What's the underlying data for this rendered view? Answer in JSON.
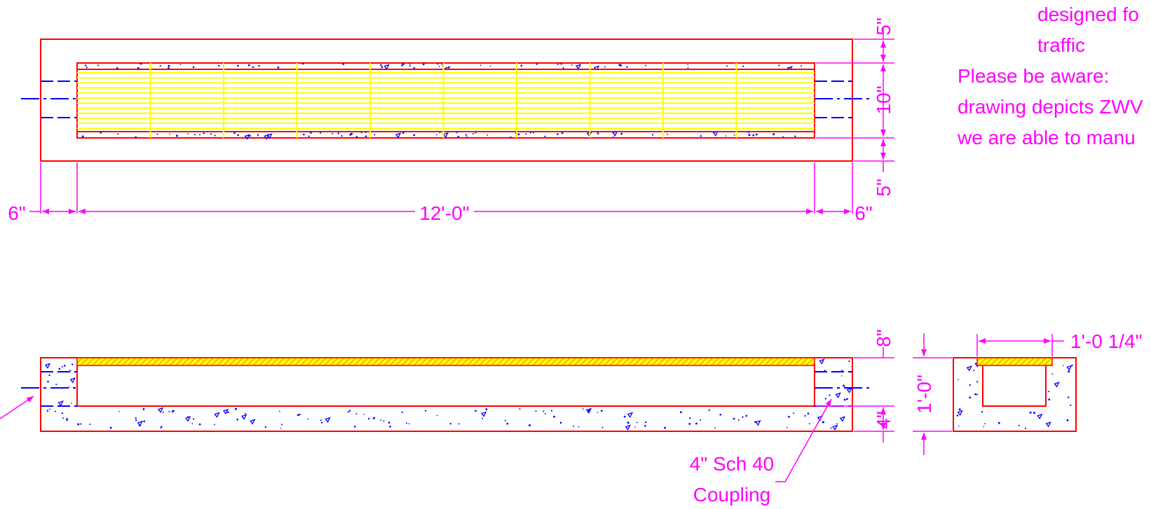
{
  "colors": {
    "outline": "#ff0000",
    "grate": "#ffff00",
    "centerline": "#0000ff",
    "dimension": "#ff00ff",
    "aggregate": "#0000ff",
    "background": "#ffffff"
  },
  "plan_view": {
    "dims": {
      "left_end": "6\"",
      "length": "12'-0\"",
      "right_end": "6\"",
      "top_wall": "5\"",
      "inner_width": "10\"",
      "bottom_wall": "5\""
    }
  },
  "section_view": {
    "dims": {
      "grate_depth": "8\"",
      "floor": "4\""
    },
    "callout": {
      "line1": "4\" Sch 40",
      "line2": "Coupling"
    }
  },
  "end_view": {
    "dims": {
      "height": "1'-0\"",
      "top_width": "1'-0 1/4\""
    }
  },
  "notes": {
    "line1": "designed fo",
    "line2": "traffic",
    "line3": "Please be aware:",
    "line4": "drawing depicts ZWV",
    "line5": "we are able to manu"
  }
}
